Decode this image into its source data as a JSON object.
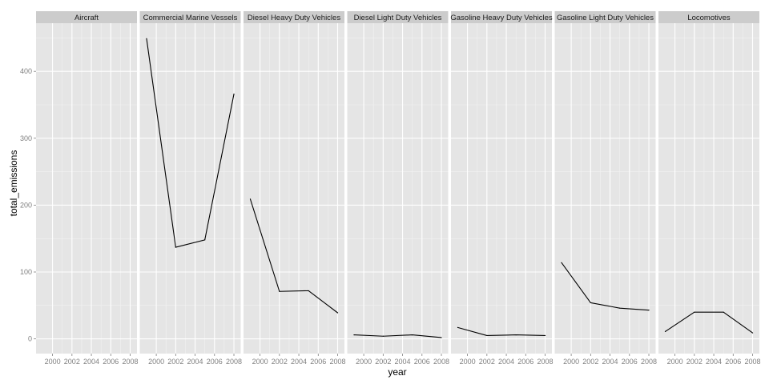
{
  "chart_data": {
    "type": "line",
    "layout": "facet-grid",
    "xlabel": "year",
    "ylabel": "total_emissions",
    "x_ticks": [
      2000,
      2002,
      2004,
      2006,
      2008
    ],
    "y_ticks": [
      0,
      100,
      200,
      300,
      400
    ],
    "xlim": [
      1998.3,
      2008.7
    ],
    "ylim": [
      -22,
      472
    ],
    "grid": true,
    "colors": {
      "panel_bg": "#e5e5e5",
      "strip_bg": "#cccccc",
      "grid_major": "#ffffff",
      "grid_minor": "#f2f2f2",
      "line": "#000000"
    },
    "panels": [
      {
        "name": "Aircraft",
        "x": [],
        "y": []
      },
      {
        "name": "Commercial Marine Vessels",
        "x": [
          1999,
          2002,
          2005,
          2008
        ],
        "y": [
          449,
          137,
          148,
          366
        ]
      },
      {
        "name": "Diesel Heavy Duty Vehicles",
        "x": [
          1999,
          2002,
          2005,
          2008
        ],
        "y": [
          209,
          71,
          72,
          39
        ]
      },
      {
        "name": "Diesel Light Duty Vehicles",
        "x": [
          1999,
          2002,
          2005,
          2008
        ],
        "y": [
          6,
          4,
          6,
          2
        ]
      },
      {
        "name": "Gasoline Heavy Duty Vehicles",
        "x": [
          1999,
          2002,
          2005,
          2008
        ],
        "y": [
          17,
          5,
          6,
          5
        ]
      },
      {
        "name": "Gasoline Light Duty Vehicles",
        "x": [
          1999,
          2002,
          2005,
          2008
        ],
        "y": [
          114,
          54,
          46,
          43
        ]
      },
      {
        "name": "Locomotives",
        "x": [
          1999,
          2002,
          2005,
          2008
        ],
        "y": [
          11,
          40,
          40,
          9
        ]
      }
    ]
  }
}
